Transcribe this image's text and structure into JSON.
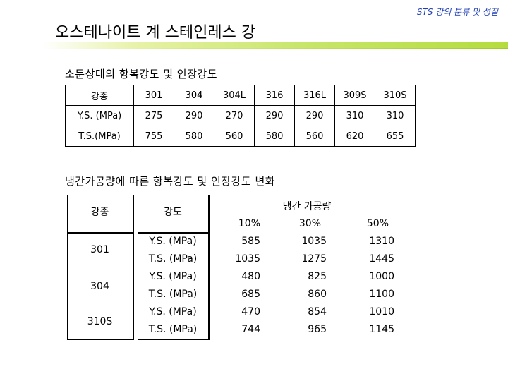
{
  "header": {
    "link_text": "STS 강의 분류 및 성질"
  },
  "title": "오스테나이트 계 스테인레스 강",
  "section1": {
    "heading": "소둔상태의 항복강도 및 인장강도",
    "columns": [
      "강종",
      "301",
      "304",
      "304L",
      "316",
      "316L",
      "309S",
      "310S"
    ],
    "rows": [
      {
        "label": "Y.S. (MPa)",
        "values": [
          "275",
          "290",
          "270",
          "290",
          "290",
          "310",
          "310"
        ]
      },
      {
        "label": "T.S.(MPa)",
        "values": [
          "755",
          "580",
          "560",
          "580",
          "560",
          "620",
          "655"
        ]
      }
    ]
  },
  "section2": {
    "heading": "냉간가공량에 따른 항복강도 및 인장강도 변화",
    "col_grade": "강종",
    "col_strength": "강도",
    "col_work": "냉간 가공량",
    "work_levels": [
      "10%",
      "30%",
      "50%"
    ],
    "grades": [
      "301",
      "304",
      "310S"
    ],
    "rows": [
      {
        "strength": "Y.S. (MPa)",
        "values": [
          "585",
          "1035",
          "1310"
        ]
      },
      {
        "strength": "T.S. (MPa)",
        "values": [
          "1035",
          "1275",
          "1445"
        ]
      },
      {
        "strength": "Y.S. (MPa)",
        "values": [
          "480",
          "825",
          "1000"
        ]
      },
      {
        "strength": "T.S. (MPa)",
        "values": [
          "685",
          "860",
          "1100"
        ]
      },
      {
        "strength": "Y.S. (MPa)",
        "values": [
          "470",
          "854",
          "1010"
        ]
      },
      {
        "strength": "T.S. (MPa)",
        "values": [
          "744",
          "965",
          "1145"
        ]
      }
    ]
  }
}
